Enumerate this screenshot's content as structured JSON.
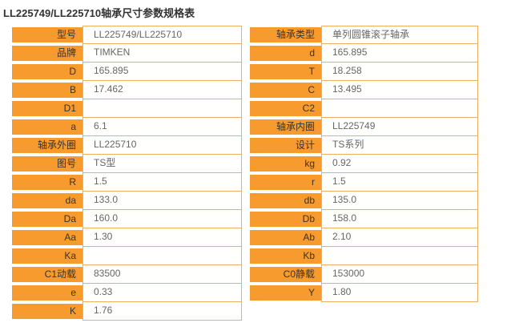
{
  "page": {
    "title": "LL225749/LL225710轴承尺寸参数规格表"
  },
  "colors": {
    "label_bg": "#F89B2E",
    "label_text": "#333333",
    "value_text": "#666666",
    "cell_border": "#EFAF5E",
    "title_text": "#333333",
    "page_bg": "#FFFFFF"
  },
  "left_table": {
    "rows": [
      {
        "label": "型号",
        "value": "LL225749/LL225710"
      },
      {
        "label": "品牌",
        "value": "TIMKEN"
      },
      {
        "label": "D",
        "value": "165.895"
      },
      {
        "label": "B",
        "value": "17.462"
      },
      {
        "label": "D1",
        "value": ""
      },
      {
        "label": "a",
        "value": "6.1"
      },
      {
        "label": "轴承外圈",
        "value": "LL225710"
      },
      {
        "label": "图号",
        "value": "TS型"
      },
      {
        "label": "R",
        "value": "1.5"
      },
      {
        "label": "da",
        "value": "133.0"
      },
      {
        "label": "Da",
        "value": "160.0"
      },
      {
        "label": "Aa",
        "value": "1.30"
      },
      {
        "label": "Ka",
        "value": ""
      },
      {
        "label": "C1动载",
        "value": "83500"
      },
      {
        "label": "e",
        "value": "0.33"
      },
      {
        "label": "K",
        "value": "1.76"
      }
    ]
  },
  "right_table": {
    "rows": [
      {
        "label": "轴承类型",
        "value": "单列圆锥滚子轴承"
      },
      {
        "label": "d",
        "value": "165.895"
      },
      {
        "label": "T",
        "value": "18.258"
      },
      {
        "label": "C",
        "value": "13.495"
      },
      {
        "label": "C2",
        "value": ""
      },
      {
        "label": "轴承内圈",
        "value": "LL225749"
      },
      {
        "label": "设计",
        "value": "TS系列"
      },
      {
        "label": "kg",
        "value": "0.92"
      },
      {
        "label": "r",
        "value": "1.5"
      },
      {
        "label": "db",
        "value": "135.0"
      },
      {
        "label": "Db",
        "value": "158.0"
      },
      {
        "label": "Ab",
        "value": "2.10"
      },
      {
        "label": "Kb",
        "value": ""
      },
      {
        "label": "C0静载",
        "value": "153000"
      },
      {
        "label": "Y",
        "value": "1.80"
      }
    ]
  }
}
